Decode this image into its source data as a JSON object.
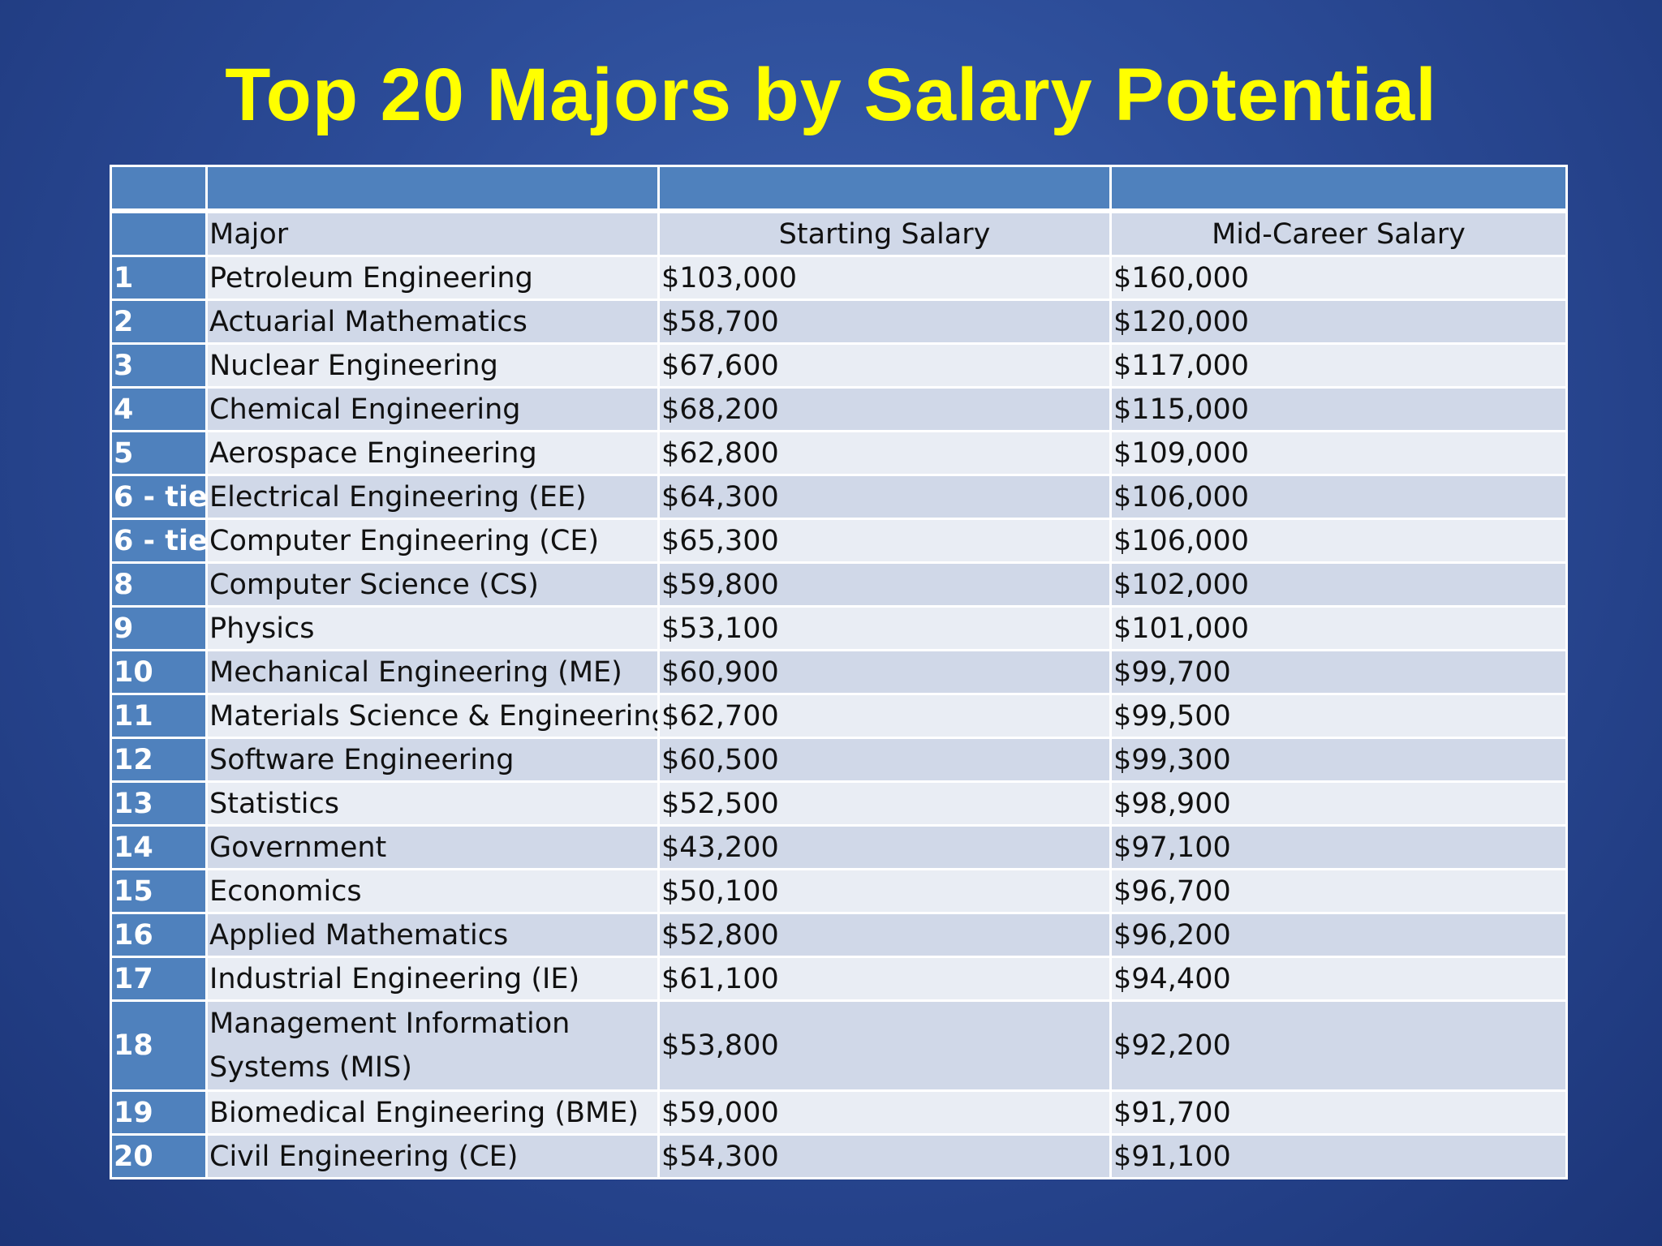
{
  "title": "Top 20 Majors by Salary Potential",
  "table": {
    "headers": [
      "",
      "Major",
      "Starting Salary",
      "Mid-Career Salary"
    ],
    "rows": [
      {
        "rank": "1",
        "major": "Petroleum Engineering",
        "start": "$103,000",
        "mid": "$160,000"
      },
      {
        "rank": "2",
        "major": "Actuarial Mathematics",
        "start": "$58,700",
        "mid": "$120,000"
      },
      {
        "rank": "3",
        "major": "Nuclear Engineering",
        "start": "$67,600",
        "mid": "$117,000"
      },
      {
        "rank": "4",
        "major": "Chemical Engineering",
        "start": "$68,200",
        "mid": "$115,000"
      },
      {
        "rank": "5",
        "major": "Aerospace Engineering",
        "start": "$62,800",
        "mid": "$109,000"
      },
      {
        "rank": "6 - tie",
        "major": "Electrical Engineering (EE)",
        "start": "$64,300",
        "mid": "$106,000"
      },
      {
        "rank": "6 - tie",
        "major": "Computer Engineering (CE)",
        "start": "$65,300",
        "mid": "$106,000"
      },
      {
        "rank": "8",
        "major": "Computer Science (CS)",
        "start": "$59,800",
        "mid": "$102,000"
      },
      {
        "rank": "9",
        "major": "Physics",
        "start": "$53,100",
        "mid": "$101,000"
      },
      {
        "rank": "10",
        "major": "Mechanical Engineering (ME)",
        "start": "$60,900",
        "mid": "$99,700"
      },
      {
        "rank": "11",
        "major": "Materials Science & Engineering",
        "start": "$62,700",
        "mid": "$99,500"
      },
      {
        "rank": "12",
        "major": "Software Engineering",
        "start": "$60,500",
        "mid": "$99,300"
      },
      {
        "rank": "13",
        "major": "Statistics",
        "start": "$52,500",
        "mid": "$98,900"
      },
      {
        "rank": "14",
        "major": "Government",
        "start": "$43,200",
        "mid": "$97,100"
      },
      {
        "rank": "15",
        "major": "Economics",
        "start": "$50,100",
        "mid": "$96,700"
      },
      {
        "rank": "16",
        "major": "Applied Mathematics",
        "start": "$52,800",
        "mid": "$96,200"
      },
      {
        "rank": "17",
        "major": "Industrial Engineering (IE)",
        "start": "$61,100",
        "mid": "$94,400"
      },
      {
        "rank": "18",
        "major": "Management Information Systems (MIS)",
        "start": "$53,800",
        "mid": "$92,200"
      },
      {
        "rank": "19",
        "major": "Biomedical Engineering (BME)",
        "start": "$59,000",
        "mid": "$91,700"
      },
      {
        "rank": "20",
        "major": "Civil Engineering (CE)",
        "start": "$54,300",
        "mid": "$91,100"
      }
    ]
  }
}
